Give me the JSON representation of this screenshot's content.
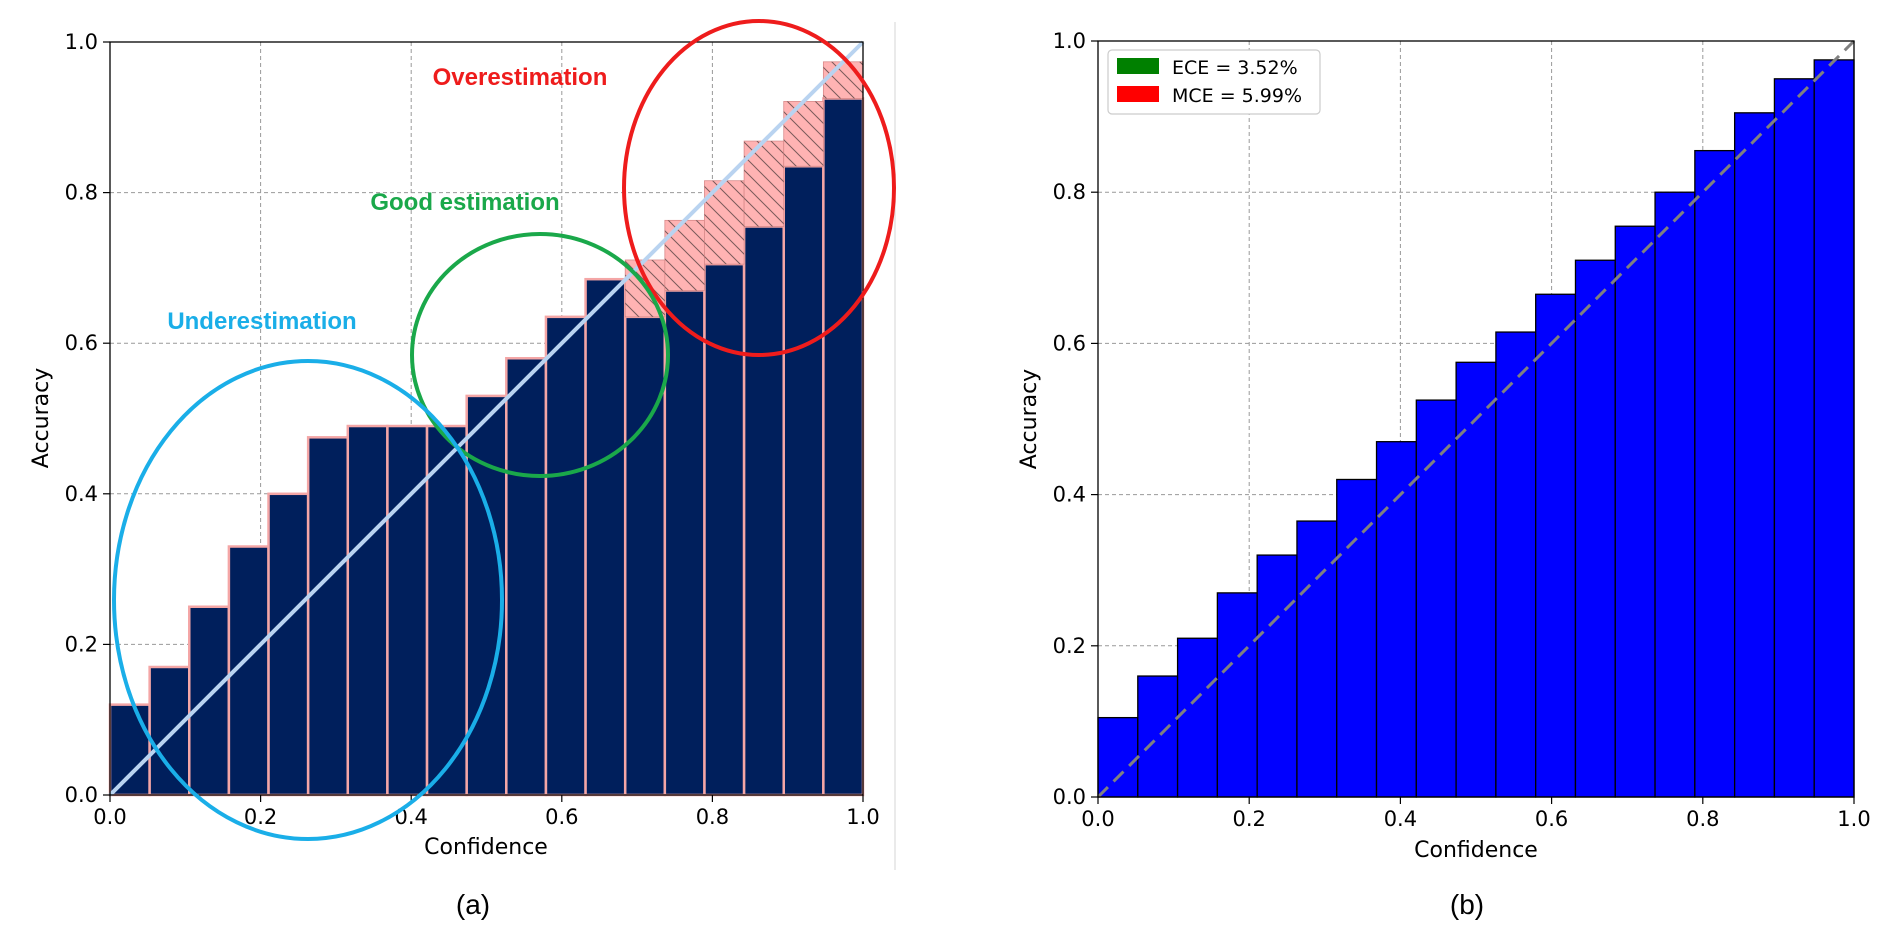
{
  "chart_data": [
    {
      "type": "bar",
      "panel_label": "(a)",
      "xlabel": "Confidence",
      "ylabel": "Accuracy",
      "xlim": [
        0,
        1
      ],
      "ylim": [
        0,
        1
      ],
      "x_ticks": [
        "0.0",
        "0.2",
        "0.4",
        "0.6",
        "0.8",
        "1.0"
      ],
      "y_ticks": [
        "0.0",
        "0.2",
        "0.4",
        "0.6",
        "0.8",
        "1.0"
      ],
      "grid": true,
      "bins": 19,
      "bar_color": "#001f5c",
      "bar_edge_color": "#f4a6a6",
      "gap_color": "#ffb3b3",
      "diagonal_color": "#b9d3f0",
      "x": [
        0.026,
        0.079,
        0.132,
        0.184,
        0.237,
        0.289,
        0.342,
        0.395,
        0.447,
        0.5,
        0.553,
        0.605,
        0.658,
        0.711,
        0.763,
        0.816,
        0.868,
        0.921,
        0.974
      ],
      "values": [
        0.12,
        0.17,
        0.25,
        0.33,
        0.4,
        0.475,
        0.49,
        0.49,
        0.49,
        0.53,
        0.58,
        0.635,
        0.685,
        0.635,
        0.67,
        0.705,
        0.755,
        0.835,
        0.925
      ],
      "annotations": [
        {
          "text": "Overestimation",
          "color": "#ee1c1c"
        },
        {
          "text": "Good estimation",
          "color": "#1aa84a"
        },
        {
          "text": "Underestimation",
          "color": "#1aaee8"
        }
      ]
    },
    {
      "type": "bar",
      "panel_label": "(b)",
      "xlabel": "Confidence",
      "ylabel": "Accuracy",
      "xlim": [
        0,
        1
      ],
      "ylim": [
        0,
        1
      ],
      "x_ticks": [
        "0.0",
        "0.2",
        "0.4",
        "0.6",
        "0.8",
        "1.0"
      ],
      "y_ticks": [
        "0.0",
        "0.2",
        "0.4",
        "0.6",
        "0.8",
        "1.0"
      ],
      "grid": true,
      "bins": 19,
      "bar_color": "#0000ff",
      "bar_edge_color": "#000000",
      "gap_color": "#ffb3b3",
      "diagonal_color": "#808080",
      "legend": [
        {
          "label": "ECE = 3.52%",
          "color": "#008000"
        },
        {
          "label": "MCE = 5.99%",
          "color": "#ff0000"
        }
      ],
      "legend_position": "top-left",
      "x": [
        0.026,
        0.079,
        0.132,
        0.184,
        0.237,
        0.289,
        0.342,
        0.395,
        0.447,
        0.5,
        0.553,
        0.605,
        0.658,
        0.711,
        0.763,
        0.816,
        0.868,
        0.921,
        0.974
      ],
      "values": [
        0.105,
        0.16,
        0.21,
        0.27,
        0.32,
        0.365,
        0.42,
        0.47,
        0.525,
        0.575,
        0.615,
        0.665,
        0.71,
        0.755,
        0.8,
        0.855,
        0.905,
        0.95,
        0.975
      ]
    }
  ]
}
